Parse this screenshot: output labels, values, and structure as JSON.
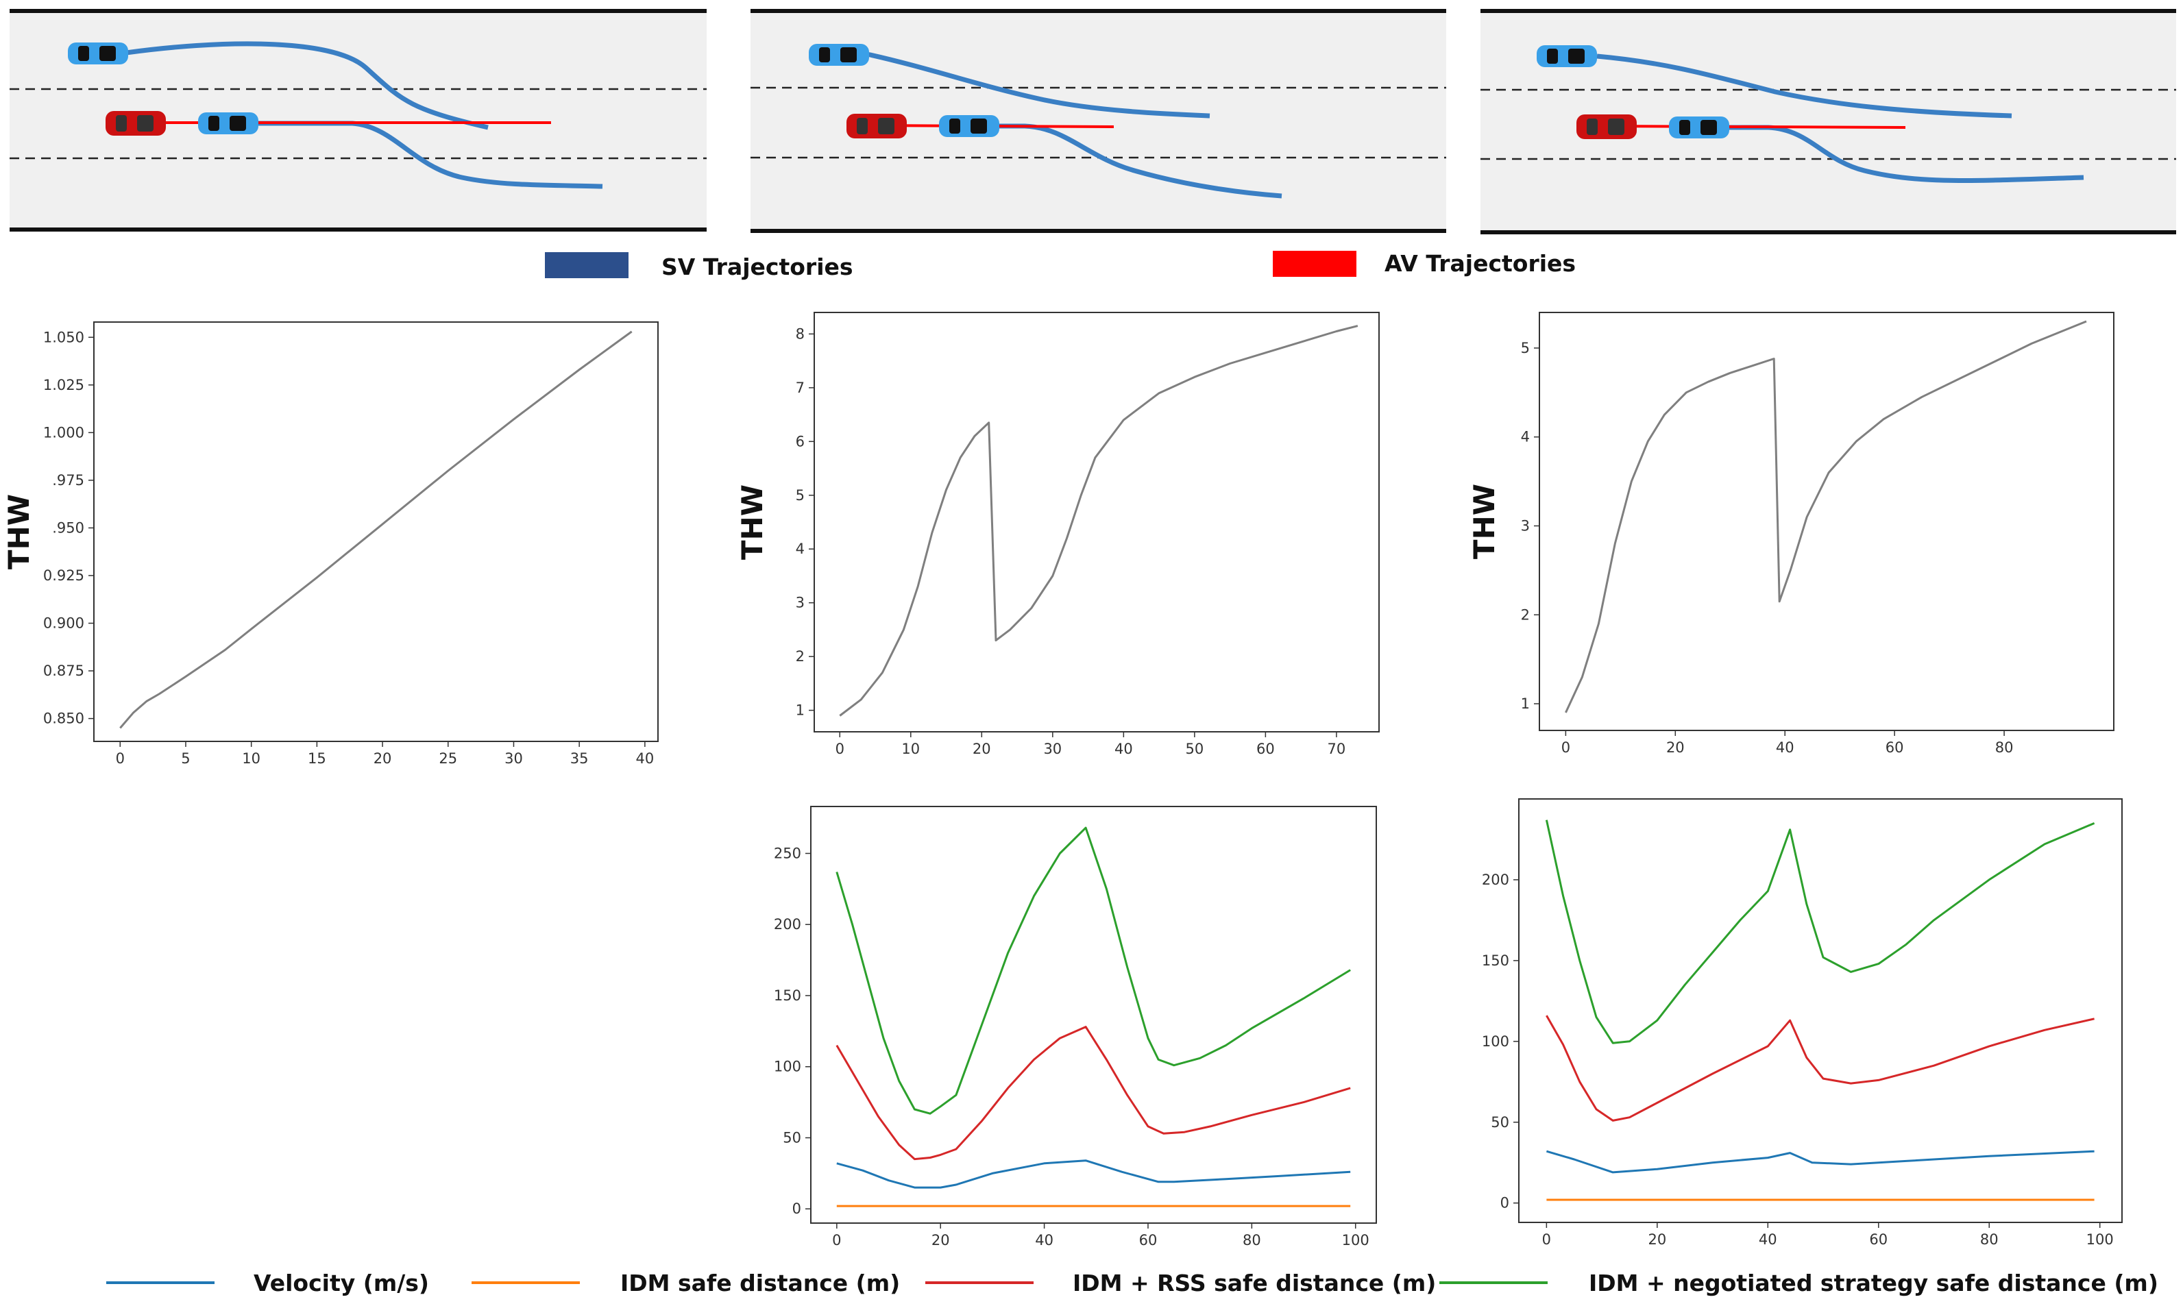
{
  "lane_panels": [
    {
      "name": "scenario-1"
    },
    {
      "name": "scenario-2"
    },
    {
      "name": "scenario-3"
    }
  ],
  "trajectory_legend": {
    "sv_label": "SV Trajectories",
    "av_label": "AV Trajectories",
    "sv_color": "#2c4f8c",
    "av_color": "#ff0000"
  },
  "colors": {
    "thw_line": "#7f7f7f",
    "velocity": "#1f77b4",
    "idm": "#ff7f0e",
    "idm_rss": "#d62728",
    "idm_negotiated": "#2ca02c",
    "sv_traj": "#3a7fc4",
    "av_traj": "#ff0000"
  },
  "chart_data": [
    {
      "type": "line",
      "id": "thw-1",
      "title": "",
      "xlabel": "",
      "ylabel": "THW",
      "xlim": [
        -2,
        41
      ],
      "ylim": [
        0.838,
        1.058
      ],
      "xticks": [
        0,
        5,
        10,
        15,
        20,
        25,
        30,
        35,
        40
      ],
      "yticks": [
        0.85,
        0.875,
        0.9,
        0.925,
        0.95,
        0.975,
        1.0,
        1.025,
        1.05
      ],
      "ytick_labels": [
        "0.850",
        "0.875",
        "0.900",
        "0.925",
        ".950",
        ".975",
        "1.000",
        "1.025",
        "1.050"
      ],
      "series": [
        {
          "name": "THW",
          "x": [
            0,
            1,
            2,
            3,
            5,
            8,
            10,
            15,
            20,
            25,
            30,
            35,
            39
          ],
          "y": [
            0.845,
            0.853,
            0.859,
            0.863,
            0.872,
            0.886,
            0.897,
            0.924,
            0.952,
            0.98,
            1.007,
            1.033,
            1.053
          ]
        }
      ]
    },
    {
      "type": "line",
      "id": "thw-2",
      "title": "",
      "xlabel": "",
      "ylabel": "THW",
      "xlim": [
        -3.6,
        76
      ],
      "ylim": [
        0.6,
        8.4
      ],
      "xticks": [
        0,
        10,
        20,
        30,
        40,
        50,
        60,
        70
      ],
      "yticks": [
        1,
        2,
        3,
        4,
        5,
        6,
        7,
        8
      ],
      "ytick_labels": [
        "1",
        "2",
        "3",
        "4",
        "5",
        "6",
        "7",
        "8"
      ],
      "series": [
        {
          "name": "THW",
          "x": [
            0,
            3,
            6,
            9,
            11,
            13,
            15,
            17,
            19,
            21,
            22,
            24,
            27,
            30,
            32,
            34,
            36,
            40,
            45,
            50,
            55,
            60,
            65,
            70,
            73
          ],
          "y": [
            0.9,
            1.2,
            1.7,
            2.5,
            3.3,
            4.3,
            5.1,
            5.7,
            6.1,
            6.35,
            2.3,
            2.5,
            2.9,
            3.5,
            4.2,
            5.0,
            5.7,
            6.4,
            6.9,
            7.2,
            7.45,
            7.65,
            7.85,
            8.05,
            8.15
          ]
        }
      ]
    },
    {
      "type": "line",
      "id": "thw-3",
      "title": "",
      "xlabel": "",
      "ylabel": "THW",
      "xlim": [
        -4.8,
        100
      ],
      "ylim": [
        0.7,
        5.4
      ],
      "xticks": [
        0,
        20,
        40,
        60,
        80
      ],
      "yticks": [
        1,
        2,
        3,
        4,
        5
      ],
      "ytick_labels": [
        "1",
        "2",
        "3",
        "4",
        "5"
      ],
      "series": [
        {
          "name": "THW",
          "x": [
            0,
            3,
            6,
            9,
            12,
            15,
            18,
            22,
            26,
            30,
            34,
            38,
            39,
            41,
            44,
            48,
            53,
            58,
            65,
            75,
            85,
            95
          ],
          "y": [
            0.9,
            1.3,
            1.9,
            2.8,
            3.5,
            3.95,
            4.25,
            4.5,
            4.62,
            4.72,
            4.8,
            4.88,
            2.15,
            2.5,
            3.1,
            3.6,
            3.95,
            4.2,
            4.45,
            4.75,
            5.05,
            5.3
          ]
        }
      ]
    },
    {
      "type": "line",
      "id": "safe-distance-2",
      "title": "",
      "xlabel": "",
      "ylabel": "",
      "xlim": [
        -5,
        104
      ],
      "ylim": [
        -10,
        283
      ],
      "xticks": [
        0,
        20,
        40,
        60,
        80,
        100
      ],
      "yticks": [
        0,
        50,
        100,
        150,
        200,
        250
      ],
      "ytick_labels": [
        "0",
        "50",
        "100",
        "150",
        "200",
        "250"
      ],
      "series": [
        {
          "name": "Velocity (m/s)",
          "color_key": "velocity",
          "x": [
            0,
            5,
            10,
            15,
            20,
            23,
            30,
            40,
            48,
            55,
            62,
            65,
            75,
            85,
            99
          ],
          "y": [
            32,
            27,
            20,
            15,
            15,
            17,
            25,
            32,
            34,
            26,
            19,
            19,
            21,
            23,
            26
          ]
        },
        {
          "name": "IDM safe distance (m)",
          "color_key": "idm",
          "x": [
            0,
            99
          ],
          "y": [
            2,
            2
          ]
        },
        {
          "name": "IDM + RSS safe distance (m)",
          "color_key": "idm_rss",
          "x": [
            0,
            4,
            8,
            12,
            15,
            18,
            20,
            23,
            28,
            33,
            38,
            43,
            48,
            52,
            56,
            60,
            63,
            67,
            72,
            80,
            90,
            99
          ],
          "y": [
            115,
            90,
            65,
            45,
            35,
            36,
            38,
            42,
            62,
            85,
            105,
            120,
            128,
            105,
            80,
            58,
            53,
            54,
            58,
            66,
            75,
            85
          ]
        },
        {
          "name": "IDM + negotiated strategy safe distance (m)",
          "color_key": "idm_negotiated",
          "x": [
            0,
            3,
            6,
            9,
            12,
            15,
            18,
            20,
            23,
            28,
            33,
            38,
            43,
            48,
            52,
            56,
            60,
            62,
            65,
            70,
            75,
            80,
            90,
            99
          ],
          "y": [
            237,
            200,
            160,
            120,
            90,
            70,
            67,
            72,
            80,
            130,
            180,
            220,
            250,
            268,
            225,
            170,
            120,
            105,
            101,
            106,
            115,
            127,
            148,
            168
          ]
        }
      ]
    },
    {
      "type": "line",
      "id": "safe-distance-3",
      "title": "",
      "xlabel": "",
      "ylabel": "",
      "xlim": [
        -5,
        104
      ],
      "ylim": [
        -12,
        250
      ],
      "xticks": [
        0,
        20,
        40,
        60,
        80,
        100
      ],
      "yticks": [
        0,
        50,
        100,
        150,
        200
      ],
      "ytick_labels": [
        "0",
        "50",
        "100",
        "150",
        "200"
      ],
      "series": [
        {
          "name": "Velocity (m/s)",
          "color_key": "velocity",
          "x": [
            0,
            5,
            12,
            20,
            30,
            40,
            44,
            48,
            55,
            65,
            80,
            99
          ],
          "y": [
            32,
            27,
            19,
            21,
            25,
            28,
            31,
            25,
            24,
            26,
            29,
            32
          ]
        },
        {
          "name": "IDM safe distance (m)",
          "color_key": "idm",
          "x": [
            0,
            99
          ],
          "y": [
            2,
            2
          ]
        },
        {
          "name": "IDM + RSS safe distance (m)",
          "color_key": "idm_rss",
          "x": [
            0,
            3,
            6,
            9,
            12,
            15,
            20,
            30,
            40,
            44,
            47,
            50,
            55,
            60,
            70,
            80,
            90,
            99
          ],
          "y": [
            116,
            98,
            75,
            58,
            51,
            53,
            62,
            80,
            97,
            113,
            90,
            77,
            74,
            76,
            85,
            97,
            107,
            114
          ]
        },
        {
          "name": "IDM + negotiated strategy safe distance (m)",
          "color_key": "idm_negotiated",
          "x": [
            0,
            3,
            6,
            9,
            12,
            15,
            20,
            25,
            30,
            35,
            40,
            44,
            47,
            50,
            55,
            60,
            65,
            70,
            80,
            90,
            99
          ],
          "y": [
            237,
            190,
            150,
            115,
            99,
            100,
            113,
            135,
            155,
            175,
            193,
            231,
            185,
            152,
            143,
            148,
            160,
            175,
            200,
            222,
            235
          ]
        }
      ]
    }
  ],
  "series_legend": [
    {
      "label": "Velocity (m/s)",
      "color_key": "velocity"
    },
    {
      "label": "IDM safe distance (m)",
      "color_key": "idm"
    },
    {
      "label": "IDM + RSS safe distance (m)",
      "color_key": "idm_rss"
    },
    {
      "label": "IDM + negotiated strategy safe distance (m)",
      "color_key": "idm_negotiated"
    }
  ]
}
